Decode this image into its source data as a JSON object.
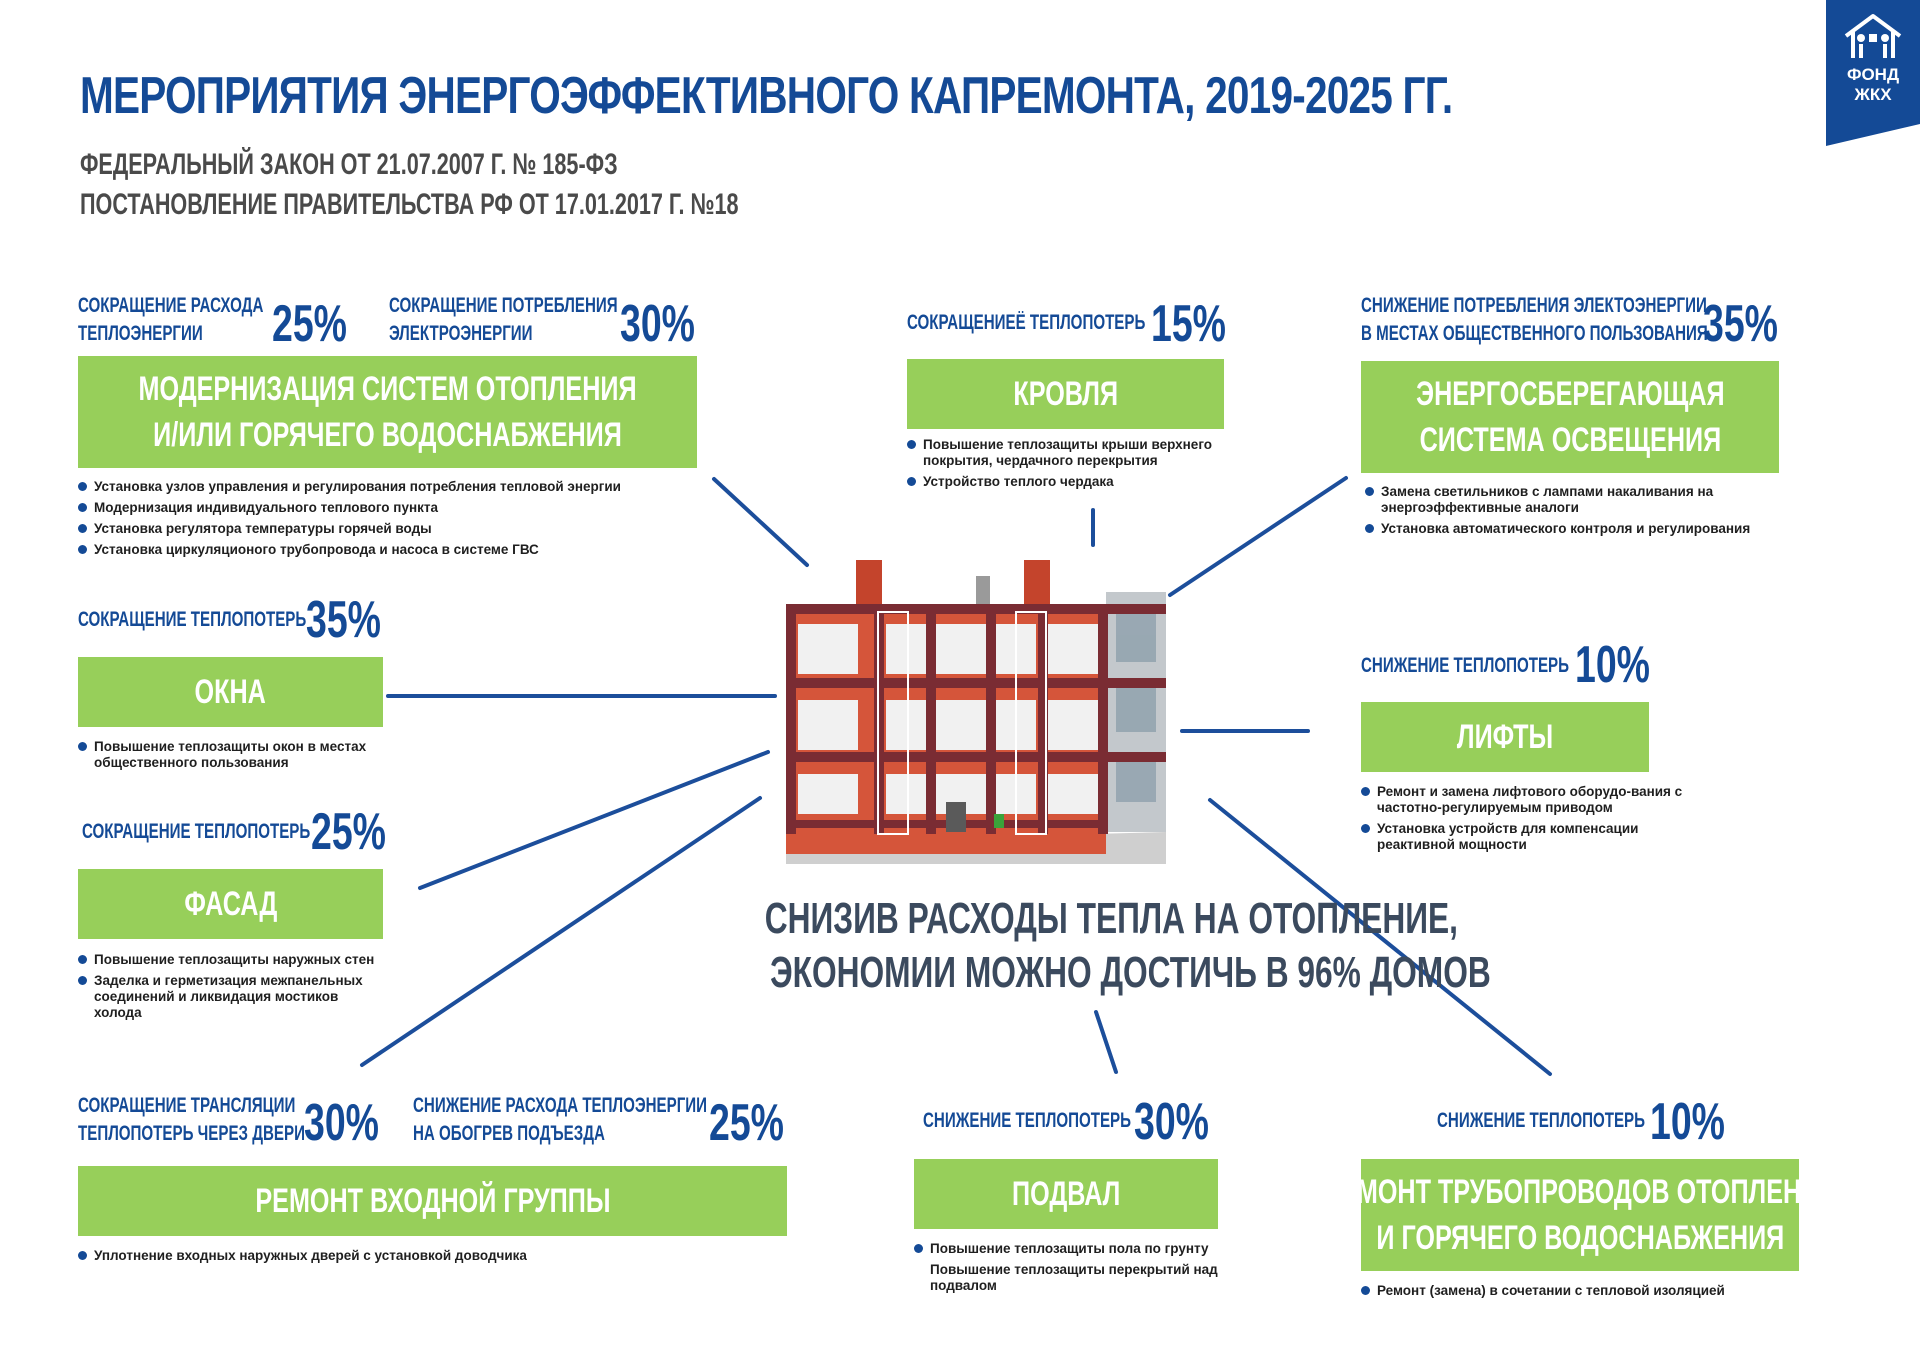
{
  "header": {
    "title": "МЕРОПРИЯТИЯ ЭНЕРГОЭФФЕКТИВНОГО КАПРЕМОНТА, 2019-2025 ГГ.",
    "subtitle1": "ФЕДЕРАЛЬНЫЙ ЗАКОН ОТ 21.07.2007 Г. № 185-ФЗ",
    "subtitle2": "ПОСТАНОВЛЕНИЕ ПРАВИТЕЛЬСТВА РФ ОТ 17.01.2017 Г. №18"
  },
  "logo": {
    "line1": "ФОНД",
    "line2": "ЖКХ",
    "icon": "house-family-icon",
    "color": "#144a96"
  },
  "colors": {
    "accent_blue": "#144a96",
    "green": "#97cf5a",
    "dark_text": "#3b4a5e"
  },
  "blocks": {
    "heating": {
      "stat1_line1": "СОКРАЩЕНИЕ РАСХОДА",
      "stat1_line2": "ТЕПЛОЭНЕРГИИ",
      "stat1_value": "25%",
      "stat2_line1": "СОКРАЩЕНИЕ ПОТРЕБЛЕНИЯ",
      "stat2_line2": "ЭЛЕКТРОЭНЕРГИИ",
      "stat2_value": "30%",
      "box_line1": "МОДЕРНИЗАЦИЯ СИСТЕМ ОТОПЛЕНИЯ",
      "box_line2": "И/ИЛИ ГОРЯЧЕГО ВОДОСНАБЖЕНИЯ",
      "bullets": [
        "Установка узлов управления и регулирования потребления тепловой энергии",
        "Модернизация индивидуального теплового пункта",
        "Установка регулятора температуры горячей воды",
        "Установка циркуляционого трубопровода и насоса в системе ГВС"
      ]
    },
    "roof": {
      "stat_label": "СОКРАЩЕНИЕЁ ТЕПЛОПОТЕРЬ",
      "stat_value": "15%",
      "box": "КРОВЛЯ",
      "bullets": [
        "Повышение теплозащиты крыши верхнего покрытия, чердачного перекрытия",
        "Устройство теплого чердака"
      ]
    },
    "lighting": {
      "stat_line1": "СНИЖЕНИЕ ПОТРЕБЛЕНИЯ ЭЛЕКТОЭНЕРГИИ",
      "stat_line2": "В МЕСТАХ ОБЩЕСТВЕННОГО ПОЛЬЗОВАНИЯ",
      "stat_value": "35%",
      "box_line1": "ЭНЕРГОСБЕРЕГАЮЩАЯ",
      "box_line2": "СИСТЕМА ОСВЕЩЕНИЯ",
      "bullets": [
        "Замена светильников с лампами накаливания на энергоэффективные аналоги",
        "Установка автоматического контроля и регулирования"
      ]
    },
    "windows": {
      "stat_label": "СОКРАЩЕНИЕ ТЕПЛОПОТЕРЬ",
      "stat_value": "35%",
      "box": "ОКНА",
      "bullets": [
        "Повышение теплозащиты окон в местах общественного пользования"
      ]
    },
    "lifts": {
      "stat_label": "СНИЖЕНИЕ ТЕПЛОПОТЕРЬ",
      "stat_value": "10%",
      "box": "ЛИФТЫ",
      "bullets": [
        "Ремонт и замена лифтового оборудо-вания с частотно-регулируемым приводом",
        "Установка устройств для компенсации реактивной мощности"
      ]
    },
    "facade": {
      "stat_label": "СОКРАЩЕНИЕ ТЕПЛОПОТЕРЬ",
      "stat_value": "25%",
      "box": "ФАСАД",
      "bullets": [
        "Повышение теплозащиты наружных стен",
        "Заделка и герметизация межпанельных соединений и ликвидация мостиков холода"
      ]
    },
    "entrance": {
      "stat1_line1": "СОКРАЩЕНИЕ ТРАНСЛЯЦИИ",
      "stat1_line2": "ТЕПЛОПОТЕРЬ ЧЕРЕЗ ДВЕРИ",
      "stat1_value": "30%",
      "stat2_line1": "СНИЖЕНИЕ РАСХОДА  ТЕПЛОЭНЕРГИИ",
      "stat2_line2": "НА ОБОГРЕВ  ПОДЪЕЗДА",
      "stat2_value": "25%",
      "box": "РЕМОНТ ВХОДНОЙ ГРУППЫ",
      "bullets": [
        "Уплотнение входных наружных дверей с установкой доводчика"
      ]
    },
    "basement": {
      "stat_label": "СНИЖЕНИЕ ТЕПЛОПОТЕРЬ",
      "stat_value": "30%",
      "box": "ПОДВАЛ",
      "bullet1": "Повышение теплозащиты пола по грунту",
      "bullet2": "Повышение теплозащиты перекрытий над подвалом"
    },
    "pipes": {
      "stat_label": "СНИЖЕНИЕ ТЕПЛОПОТЕРЬ",
      "stat_value": "10%",
      "box_line1": "РЕМОНТ ТРУБОПРОВОДОВ ОТОПЛЕНИЯ",
      "box_line2": "И ГОРЯЧЕГО  ВОДОСНАБЖЕНИЯ",
      "bullets": [
        "Ремонт (замена) в сочетании с тепловой изоляцией"
      ]
    }
  },
  "conclusion": {
    "line1": "СНИЗИВ РАСХОДЫ ТЕПЛА НА ОТОПЛЕНИЕ,",
    "line2": "ЭКОНОМИИ МОЖНО ДОСТИЧЬ В 96% ДОМОВ"
  }
}
